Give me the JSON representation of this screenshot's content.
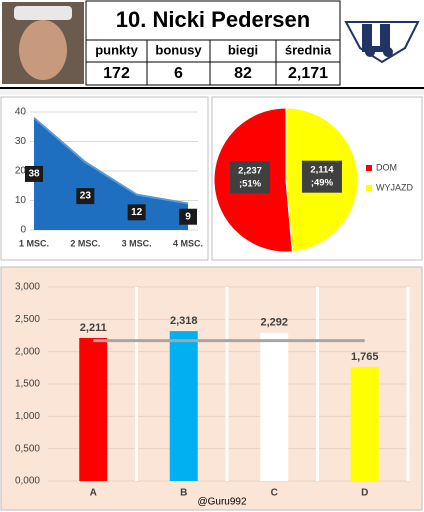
{
  "header": {
    "title": "10. Nicki Pedersen",
    "columns": [
      "punkty",
      "bonusy",
      "biegi",
      "średnia"
    ],
    "values": [
      172,
      6,
      82,
      "2,171"
    ]
  },
  "watermark": "@Guru992",
  "chart_data": [
    {
      "type": "area",
      "categories": [
        "1 MSC.",
        "2 MSC.",
        "3 MSC.",
        "4 MSC."
      ],
      "values": [
        38,
        23,
        12,
        9
      ],
      "color": "#1f6fc0",
      "line_color": "#5b9bd5",
      "ylim": [
        0,
        40
      ],
      "yticks": [
        0,
        10,
        20,
        30,
        40
      ],
      "grid": true
    },
    {
      "type": "pie",
      "categories": [
        "DOM",
        "WYJAZD"
      ],
      "values": [
        2.237,
        2.114
      ],
      "value_labels": [
        "2,237 ;51%",
        "2,114 ;49%"
      ],
      "colors": [
        "#ff0000",
        "#ffff00"
      ],
      "legend": "right"
    },
    {
      "type": "bar",
      "categories": [
        "A",
        "B",
        "C",
        "D"
      ],
      "values": [
        2.211,
        2.318,
        2.292,
        1.765
      ],
      "value_labels": [
        "2,211",
        "2,318",
        "2,292",
        "1,765"
      ],
      "colors": [
        "#ff0000",
        "#00b0f0",
        "#ffffff",
        "#ffff00"
      ],
      "ylim": [
        0,
        3
      ],
      "yticks": [
        {
          "value": 0,
          "label": "0,000"
        },
        {
          "value": 0.5,
          "label": "0,500"
        },
        {
          "value": 1,
          "label": "1,000"
        },
        {
          "value": 1.5,
          "label": "1,500"
        },
        {
          "value": 2,
          "label": "2,000"
        },
        {
          "value": 2.5,
          "label": "2,500"
        },
        {
          "value": 3,
          "label": "3,000"
        }
      ],
      "grid": true,
      "reference_line": {
        "value": 2.171,
        "color": "#a6a6a6"
      }
    }
  ]
}
